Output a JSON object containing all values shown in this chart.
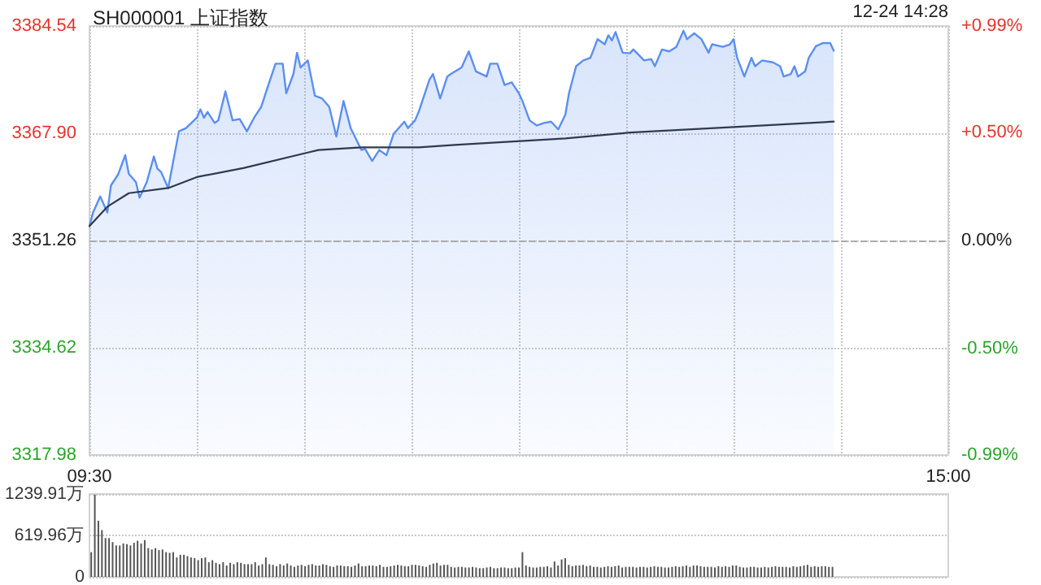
{
  "chart_data": [
    {
      "type": "line",
      "title": "SH000001 上证指数",
      "annotations": [
        "12-24 14:28"
      ],
      "categories": [
        "09:30",
        null,
        null,
        null,
        null,
        null,
        null,
        null,
        null,
        null,
        null,
        null,
        null,
        null,
        null,
        null,
        null,
        null,
        null,
        null,
        null,
        null,
        null,
        null,
        null,
        null,
        null,
        null,
        null,
        null,
        null,
        null,
        null,
        null,
        null,
        null,
        null,
        null,
        null,
        null,
        null,
        null,
        null,
        null,
        null,
        null,
        null,
        null,
        null,
        null,
        null,
        null,
        null,
        null,
        null,
        null,
        null,
        null,
        null,
        null,
        null,
        null,
        null,
        null,
        null,
        null,
        null,
        null,
        null,
        null,
        null,
        null,
        null,
        null,
        null,
        null,
        null,
        null,
        null,
        null,
        null,
        null,
        null,
        null,
        null,
        null,
        null,
        null,
        null,
        null,
        null,
        null,
        null,
        null,
        null,
        null,
        null,
        null,
        null,
        null,
        null,
        null,
        null,
        null,
        null,
        null,
        null,
        null,
        null,
        null,
        null,
        null,
        null,
        null,
        null,
        null,
        null,
        null,
        null,
        null,
        null,
        null,
        null,
        null,
        null,
        null,
        null,
        null,
        null,
        null,
        null,
        null,
        null,
        null,
        null,
        null,
        null,
        null,
        null,
        null,
        null,
        null,
        null,
        null,
        null,
        null,
        null,
        null,
        null,
        null,
        null,
        null,
        null,
        null,
        null,
        null,
        null,
        null,
        null,
        null,
        null,
        null,
        null,
        null,
        null,
        null,
        null,
        null,
        null,
        null,
        null,
        null,
        null,
        null,
        null,
        null,
        null,
        null,
        null,
        null,
        null,
        null,
        null,
        null,
        null,
        null,
        null,
        null,
        null,
        null,
        null,
        null,
        null,
        null,
        null,
        null,
        null,
        null,
        null,
        null,
        null,
        null,
        null,
        null,
        null,
        null,
        null,
        null,
        null,
        null,
        null,
        null,
        null,
        null,
        null,
        null,
        null,
        null,
        null,
        null,
        null,
        null,
        null,
        null,
        null,
        null,
        null,
        null,
        null,
        null,
        null,
        null,
        null,
        null,
        null,
        null,
        null,
        null,
        null,
        null,
        "15:00"
      ],
      "ylim": [
        3317.98,
        3384.54
      ],
      "yticks": [
        {
          "value": 3317.98,
          "label": "3317.98"
        },
        {
          "value": 3334.62,
          "label": "3334.62"
        },
        {
          "value": 3351.26,
          "label": "3351.26"
        },
        {
          "value": 3367.9,
          "label": "3367.90"
        },
        {
          "value": 3384.54,
          "label": "3384.54"
        }
      ],
      "y2lim": [
        -0.99,
        0.99
      ],
      "y2ticks": [
        {
          "value": -0.99,
          "label": "-0.99%"
        },
        {
          "value": -0.5,
          "label": "-0.50%"
        },
        {
          "value": 0,
          "label": "0.00%"
        },
        {
          "value": 0.5,
          "label": "+0.50%"
        },
        {
          "value": 0.99,
          "label": "+0.99%"
        }
      ],
      "grid": true,
      "marker": "none",
      "ref_lines": [
        {
          "axis": "y",
          "value": 3351.26,
          "line_style": "dashed",
          "color": "#aaaaaa"
        }
      ],
      "series": [
        {
          "type": "area",
          "color": "#5b8ff0",
          "values": [
            3353.5,
            3355.6,
            null,
            3358.1,
            null,
            3355.6,
            3359.8,
            null,
            3361.5,
            null,
            3364.5,
            3361.6,
            null,
            3360.3,
            3357.9,
            null,
            3360.3,
            null,
            3364.3,
            3362.4,
            3361.9,
            null,
            3359.4,
            null,
            null,
            3368.2,
            null,
            3368.7,
            null,
            null,
            3370.3,
            3371.6,
            3370.3,
            3371.2,
            null,
            3369.5,
            3369.9,
            null,
            3374.4,
            null,
            3369.9,
            null,
            3370.1,
            null,
            3368.2,
            null,
            3370.3,
            null,
            3372.0,
            null,
            3375.4,
            null,
            3378.7,
            null,
            3378.7,
            3374.1,
            null,
            3377.1,
            3380.4,
            3378.1,
            null,
            3379.2,
            null,
            3373.7,
            null,
            3373.3,
            null,
            3372.0,
            null,
            3367.4,
            null,
            3372.9,
            null,
            3368.7,
            null,
            null,
            3365.3,
            3365.5,
            null,
            3363.6,
            null,
            3365.3,
            null,
            3364.5,
            null,
            3367.8,
            null,
            null,
            3369.7,
            3368.7,
            null,
            3369.9,
            3371.2,
            null,
            null,
            3376.2,
            3377.1,
            null,
            3373.3,
            null,
            3376.7,
            3377.1,
            null,
            null,
            3378.1,
            null,
            3380.6,
            null,
            3377.5,
            null,
            null,
            3376.7,
            3378.7,
            null,
            3378.7,
            null,
            3375.4,
            null,
            3375.8,
            null,
            3374.1,
            3372.9,
            null,
            3369.9,
            null,
            3369.1,
            null,
            3369.5,
            null,
            3369.7,
            null,
            3368.5,
            null,
            3370.8,
            3374.1,
            null,
            3378.3,
            null,
            3379.2,
            null,
            3379.6,
            null,
            3382.5,
            null,
            3381.7,
            3383.1,
            3382.3,
            3383.6,
            null,
            3380.4,
            null,
            3380.3,
            3380.9,
            null,
            null,
            3379.2,
            null,
            3379.4,
            3378.3,
            null,
            3380.9,
            null,
            3380.6,
            null,
            3381.3,
            null,
            3383.8,
            3382.5,
            null,
            3383.4,
            null,
            3382.5,
            null,
            3380.4,
            3381.7,
            null,
            null,
            3381.3,
            null,
            3381.7,
            3382.5,
            3379.6,
            null,
            3376.7,
            null,
            3379.6,
            3378.3,
            null,
            3379.2,
            null,
            null,
            3378.9,
            null,
            3378.3,
            3376.7,
            null,
            3377.1,
            3378.3,
            3376.7,
            null,
            3377.5,
            3379.6,
            null,
            3381.4,
            null,
            3381.9,
            null,
            3381.9,
            3380.7,
            null,
            null,
            null,
            null,
            null,
            null,
            null,
            null,
            null,
            null,
            null,
            null,
            null,
            null,
            null,
            null,
            null,
            null,
            null,
            null,
            null,
            null,
            null,
            null,
            null,
            null,
            null,
            null,
            null,
            null,
            null,
            null
          ]
        },
        {
          "type": "line",
          "color": "#2f3a4f",
          "values": [
            3353.5,
            null,
            null,
            null,
            null,
            3356.5,
            null,
            null,
            null,
            null,
            null,
            3358.6,
            null,
            null,
            null,
            null,
            null,
            null,
            null,
            null,
            null,
            null,
            3359.4,
            null,
            null,
            null,
            null,
            null,
            null,
            null,
            3361.1,
            null,
            null,
            null,
            null,
            null,
            null,
            null,
            null,
            null,
            null,
            null,
            null,
            3362.5,
            null,
            null,
            null,
            null,
            null,
            null,
            null,
            null,
            null,
            null,
            null,
            null,
            null,
            null,
            null,
            null,
            null,
            3364.9,
            null,
            null,
            3365.3,
            null,
            null,
            null,
            null,
            null,
            null,
            null,
            null,
            null,
            null,
            null,
            3365.7,
            null,
            null,
            null,
            null,
            null,
            null,
            null,
            null,
            null,
            null,
            null,
            null,
            null,
            null,
            null,
            3365.7,
            null,
            null,
            null,
            null,
            null,
            null,
            null,
            null,
            null,
            3366.1,
            null,
            null,
            null,
            null,
            null,
            null,
            null,
            null,
            null,
            null,
            null,
            null,
            null,
            null,
            null,
            null,
            null,
            null,
            null,
            null,
            null,
            null,
            null,
            null,
            null,
            null,
            null,
            null,
            null,
            null,
            3367.1,
            null,
            null,
            null,
            null,
            null,
            null,
            null,
            null,
            null,
            null,
            null,
            null,
            null,
            null,
            null,
            null,
            null,
            3368.0,
            null,
            null,
            null,
            null,
            null,
            null,
            null,
            null,
            null,
            null,
            null,
            null,
            null,
            null,
            null,
            null,
            null,
            null,
            null,
            null,
            null,
            null,
            null,
            null,
            null,
            null,
            null,
            null,
            null,
            3368.9,
            null,
            null,
            null,
            null,
            null,
            null,
            null,
            null,
            null,
            null,
            null,
            null,
            null,
            null,
            null,
            null,
            null,
            null,
            null,
            null,
            null,
            null,
            null,
            null,
            null,
            null,
            3369.7,
            null,
            null,
            null,
            null,
            null,
            null,
            null,
            null,
            null,
            null,
            null,
            null,
            null,
            null,
            null,
            null,
            null,
            null,
            null,
            null,
            null,
            null,
            null,
            null,
            null,
            null,
            null,
            null,
            null,
            null,
            null,
            null
          ]
        }
      ]
    },
    {
      "type": "bar",
      "tick_labels": "y",
      "grid": "y",
      "color": "#555555",
      "categories": [
        null,
        null,
        null,
        null,
        null,
        null,
        null,
        null,
        null,
        null,
        null,
        null,
        null,
        null,
        null,
        null,
        null,
        null,
        null,
        null,
        null,
        null,
        null,
        null,
        null,
        null,
        null,
        null,
        null,
        null,
        null,
        null,
        null,
        null,
        null,
        null,
        null,
        null,
        null,
        null,
        null,
        null,
        null,
        null,
        null,
        null,
        null,
        null,
        null,
        null,
        null,
        null,
        null,
        null,
        null,
        null,
        null,
        null,
        null,
        null,
        null,
        null,
        null,
        null,
        null,
        null,
        null,
        null,
        null,
        null,
        null,
        null,
        null,
        null,
        null,
        null,
        null,
        null,
        null,
        null,
        null,
        null,
        null,
        null,
        null,
        null,
        null,
        null,
        null,
        null,
        null,
        null,
        null,
        null,
        null,
        null,
        null,
        null,
        null,
        null,
        null,
        null,
        null,
        null,
        null,
        null,
        null,
        null,
        null,
        null,
        null,
        null,
        null,
        null,
        null,
        null,
        null,
        null,
        null,
        null,
        null,
        null,
        null,
        null,
        null,
        null,
        null,
        null,
        null,
        null,
        null,
        null,
        null,
        null,
        null,
        null,
        null,
        null,
        null,
        null,
        null,
        null,
        null,
        null,
        null,
        null,
        null,
        null,
        null,
        null,
        null,
        null,
        null,
        null,
        null,
        null,
        null,
        null,
        null,
        null,
        null,
        null,
        null,
        null,
        null,
        null,
        null,
        null,
        null,
        null,
        null,
        null,
        null,
        null,
        null,
        null,
        null,
        null,
        null,
        null,
        null,
        null,
        null,
        null,
        null,
        null,
        null,
        null,
        null,
        null,
        null,
        null,
        null,
        null,
        null,
        null,
        null,
        null,
        null,
        null,
        null,
        null,
        null,
        null,
        null,
        null,
        null,
        null,
        null,
        null,
        null,
        null,
        null,
        null,
        null,
        null,
        null,
        null,
        null,
        null,
        null,
        null,
        null,
        null,
        null,
        null,
        null,
        null,
        null,
        null,
        null,
        null,
        null,
        null,
        null,
        null,
        null,
        null,
        null,
        null,
        null
      ],
      "ylim": [
        0,
        1239.91
      ],
      "yticks": [
        0,
        {
          "value": 619.96,
          "label": "619.96万"
        },
        {
          "value": 1239.91,
          "label": "1239.91万"
        }
      ],
      "values": [
        370,
        1230,
        840,
        700,
        580,
        580,
        520,
        470,
        470,
        500,
        490,
        470,
        510,
        540,
        500,
        550,
        430,
        410,
        430,
        400,
        410,
        370,
        360,
        370,
        290,
        330,
        330,
        310,
        290,
        280,
        250,
        280,
        290,
        220,
        250,
        210,
        190,
        220,
        170,
        210,
        190,
        220,
        210,
        190,
        190,
        190,
        220,
        170,
        190,
        290,
        190,
        180,
        160,
        190,
        170,
        200,
        170,
        150,
        170,
        180,
        160,
        180,
        190,
        170,
        170,
        190,
        180,
        160,
        150,
        170,
        170,
        160,
        160,
        150,
        170,
        200,
        160,
        160,
        170,
        170,
        160,
        180,
        150,
        150,
        160,
        170,
        180,
        170,
        160,
        160,
        180,
        180,
        170,
        160,
        150,
        180,
        200,
        210,
        170,
        180,
        180,
        150,
        140,
        150,
        150,
        140,
        140,
        150,
        140,
        130,
        130,
        140,
        150,
        130,
        130,
        140,
        140,
        130,
        130,
        140,
        140,
        370,
        170,
        150,
        140,
        140,
        150,
        150,
        160,
        140,
        230,
        170,
        260,
        280,
        180,
        160,
        170,
        170,
        180,
        160,
        170,
        150,
        150,
        140,
        150,
        160,
        150,
        160,
        170,
        140,
        150,
        150,
        150,
        140,
        150,
        150,
        140,
        150,
        160,
        150,
        150,
        140,
        140,
        150,
        160,
        150,
        160,
        170,
        150,
        170,
        170,
        160,
        150,
        150,
        150,
        140,
        160,
        150,
        160,
        150,
        170,
        170,
        150,
        140,
        140,
        150,
        150,
        140,
        140,
        150,
        140,
        150,
        160,
        150,
        150,
        150,
        140,
        160,
        150,
        160,
        170,
        180,
        150,
        160,
        150,
        160,
        160,
        150,
        150,
        null,
        null,
        null,
        null,
        null,
        null,
        null,
        null,
        null,
        null,
        null,
        null,
        null,
        null,
        null,
        null,
        null,
        null,
        null,
        null,
        null,
        null,
        null,
        null,
        null,
        null,
        null,
        null,
        null,
        null,
        null,
        null
      ]
    }
  ]
}
